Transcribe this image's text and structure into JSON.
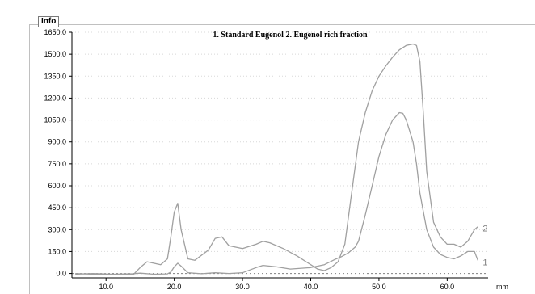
{
  "panel": {
    "tab_label": "Info"
  },
  "chart_data": {
    "type": "line",
    "title": "1. Standard Eugenol 2. Eugenol rich fraction",
    "xlabel": "mm",
    "ylabel": "",
    "xlim": [
      5,
      66
    ],
    "ylim": [
      -30,
      1650
    ],
    "x_ticks": [
      "10.0",
      "20.0",
      "30.0",
      "40.0",
      "50.0",
      "60.0"
    ],
    "x_tick_values": [
      10,
      20,
      30,
      40,
      50,
      60
    ],
    "y_ticks": [
      "0.0",
      "150.0",
      "300.0",
      "450.0",
      "600.0",
      "750.0",
      "900.0",
      "1050.0",
      "1200.0",
      "1350.0",
      "1500.0",
      "1650.0"
    ],
    "y_tick_values": [
      0,
      150,
      300,
      450,
      600,
      750,
      900,
      1050,
      1200,
      1350,
      1500,
      1650
    ],
    "grid": true,
    "series_color": "#a0a0a0",
    "series": [
      {
        "name": "1",
        "x": [
          5.5,
          8,
          11,
          14,
          15,
          17,
          19,
          19.5,
          20,
          20.5,
          21,
          22,
          24,
          26,
          28,
          30,
          32,
          33,
          35,
          37,
          40,
          42,
          43.5,
          44.5,
          45.5,
          46.5,
          47,
          48,
          49,
          50,
          51,
          52,
          53,
          53.5,
          54,
          55,
          55.5,
          56,
          57,
          58,
          59,
          60,
          61,
          62,
          63,
          64,
          64.5
        ],
        "values": [
          -5,
          0,
          -5,
          -2,
          2,
          -5,
          -3,
          10,
          45,
          70,
          50,
          5,
          -2,
          5,
          0,
          5,
          40,
          55,
          45,
          30,
          40,
          60,
          95,
          115,
          140,
          180,
          220,
          400,
          600,
          800,
          950,
          1050,
          1100,
          1095,
          1050,
          900,
          750,
          550,
          300,
          180,
          130,
          110,
          100,
          120,
          150,
          150,
          90
        ]
      },
      {
        "name": "2",
        "x": [
          5.5,
          8,
          11,
          14,
          15,
          16,
          17,
          18,
          19,
          19.5,
          20,
          20.5,
          21,
          22,
          23,
          25,
          26,
          27,
          28,
          30,
          32,
          33,
          34,
          36,
          38,
          40,
          41,
          42,
          43,
          44,
          45,
          46,
          47,
          48,
          49,
          50,
          51,
          52,
          53,
          54,
          55,
          55.5,
          56,
          56.5,
          57,
          58,
          59,
          60,
          61,
          62,
          63,
          64,
          64.5
        ],
        "values": [
          0,
          -5,
          -10,
          -8,
          40,
          80,
          70,
          60,
          100,
          250,
          420,
          480,
          300,
          100,
          90,
          160,
          240,
          250,
          190,
          170,
          200,
          220,
          210,
          170,
          120,
          60,
          30,
          20,
          40,
          80,
          200,
          550,
          900,
          1100,
          1250,
          1350,
          1420,
          1480,
          1530,
          1560,
          1570,
          1560,
          1450,
          1100,
          700,
          350,
          250,
          200,
          200,
          180,
          220,
          300,
          320
        ]
      }
    ]
  }
}
